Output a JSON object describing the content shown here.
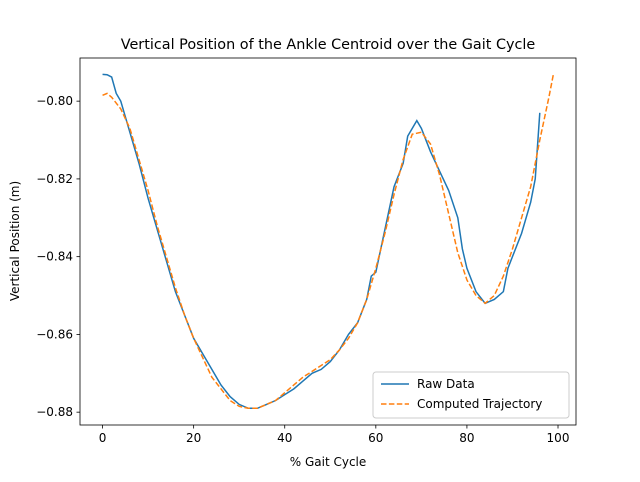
{
  "chart_data": {
    "type": "line",
    "title": "Vertical Position of the Ankle Centroid over the Gait Cycle",
    "x_label": "% Gait Cycle",
    "y_label": "Vertical Position (m)",
    "xlim": [
      -4.95,
      103.95
    ],
    "ylim": [
      -0.8833,
      -0.7889
    ],
    "xticks": [
      0,
      20,
      40,
      60,
      80,
      100
    ],
    "yticks": [
      {
        "value": -0.88,
        "label": "−0.88"
      },
      {
        "value": -0.86,
        "label": "−0.86"
      },
      {
        "value": -0.84,
        "label": "−0.84"
      },
      {
        "value": -0.82,
        "label": "−0.82"
      },
      {
        "value": -0.8,
        "label": "−0.80"
      }
    ],
    "legend": "lower right",
    "series": [
      {
        "name": "Raw Data",
        "color": "#1f77b4",
        "dash": "solid",
        "x": [
          0,
          1,
          2,
          3,
          4,
          5,
          6,
          8,
          10,
          12,
          14,
          16,
          18,
          20,
          22,
          24,
          26,
          28,
          30,
          32,
          34,
          36,
          38,
          40,
          42,
          44,
          46,
          48,
          50,
          52,
          54,
          56,
          58,
          59,
          60,
          62,
          64,
          66,
          67,
          68,
          69,
          70,
          72,
          74,
          76,
          78,
          79,
          80,
          82,
          84,
          86,
          88,
          89,
          90,
          92,
          94,
          95,
          96
        ],
        "values": [
          -0.7931,
          -0.7932,
          -0.7938,
          -0.798,
          -0.8,
          -0.804,
          -0.808,
          -0.816,
          -0.825,
          -0.833,
          -0.841,
          -0.849,
          -0.855,
          -0.861,
          -0.865,
          -0.869,
          -0.873,
          -0.876,
          -0.878,
          -0.879,
          -0.879,
          -0.878,
          -0.877,
          -0.8755,
          -0.874,
          -0.872,
          -0.87,
          -0.869,
          -0.867,
          -0.864,
          -0.86,
          -0.857,
          -0.851,
          -0.845,
          -0.844,
          -0.833,
          -0.822,
          -0.816,
          -0.809,
          -0.807,
          -0.805,
          -0.807,
          -0.813,
          -0.818,
          -0.823,
          -0.83,
          -0.838,
          -0.843,
          -0.849,
          -0.852,
          -0.851,
          -0.849,
          -0.843,
          -0.84,
          -0.834,
          -0.826,
          -0.82,
          -0.803
        ]
      },
      {
        "name": "Computed Trajectory",
        "color": "#ff7f0e",
        "dash": "dashed",
        "x": [
          0,
          1,
          2,
          4,
          6,
          8,
          10,
          12,
          14,
          16,
          18,
          20,
          22,
          24,
          26,
          28,
          30,
          32,
          34,
          36,
          38,
          40,
          42,
          44,
          46,
          48,
          50,
          52,
          54,
          56,
          58,
          60,
          62,
          64,
          66,
          68,
          70,
          72,
          74,
          76,
          78,
          80,
          82,
          84,
          86,
          88,
          90,
          92,
          94,
          96,
          98,
          99
        ],
        "values": [
          -0.7985,
          -0.798,
          -0.799,
          -0.802,
          -0.807,
          -0.815,
          -0.823,
          -0.832,
          -0.84,
          -0.848,
          -0.855,
          -0.861,
          -0.866,
          -0.871,
          -0.874,
          -0.877,
          -0.8785,
          -0.879,
          -0.879,
          -0.878,
          -0.877,
          -0.875,
          -0.873,
          -0.871,
          -0.8695,
          -0.868,
          -0.8665,
          -0.864,
          -0.861,
          -0.857,
          -0.851,
          -0.843,
          -0.834,
          -0.824,
          -0.815,
          -0.8085,
          -0.808,
          -0.811,
          -0.819,
          -0.829,
          -0.839,
          -0.846,
          -0.85,
          -0.852,
          -0.85,
          -0.845,
          -0.838,
          -0.83,
          -0.822,
          -0.81,
          -0.799,
          -0.793
        ]
      }
    ]
  }
}
